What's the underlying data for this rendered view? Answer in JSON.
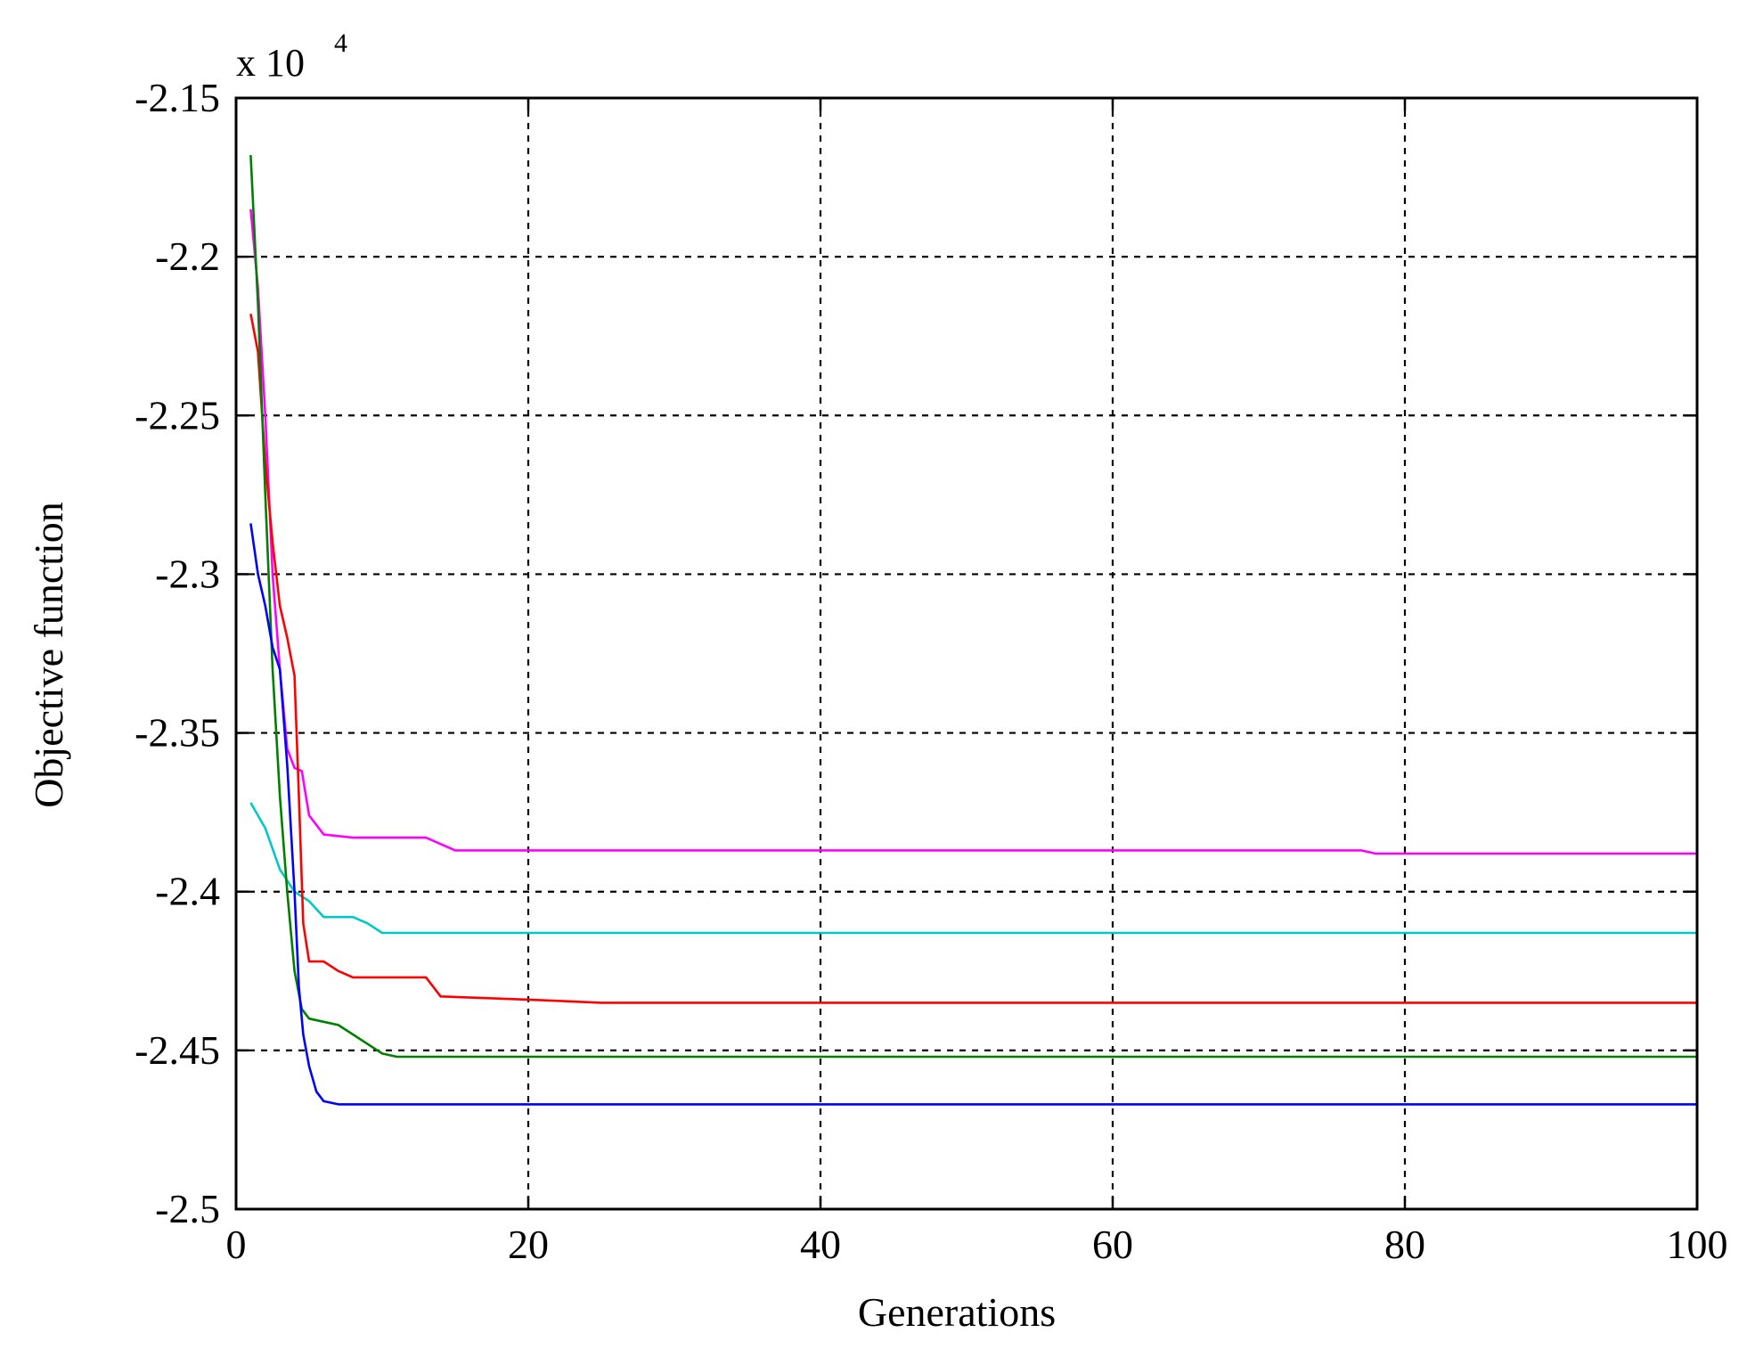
{
  "chart_data": {
    "type": "line",
    "xlabel": "Generations",
    "ylabel": "Objective function",
    "multiplier_base": "x 10",
    "multiplier_exp": "4",
    "xlim": [
      0,
      100
    ],
    "ylim": [
      -2.5,
      -2.15
    ],
    "xticks": [
      0,
      20,
      40,
      60,
      80,
      100
    ],
    "yticks": [
      -2.15,
      -2.2,
      -2.25,
      -2.3,
      -2.35,
      -2.4,
      -2.45,
      -2.5
    ],
    "xtick_labels": [
      "0",
      "20",
      "40",
      "60",
      "80",
      "100"
    ],
    "ytick_labels": [
      "-2.15",
      "-2.2",
      "-2.25",
      "-2.3",
      "-2.35",
      "-2.4",
      "-2.45",
      "-2.5"
    ],
    "grid": true,
    "series": [
      {
        "color": "#ff00ff",
        "x": [
          1,
          1.5,
          2,
          2.5,
          3,
          3.5,
          4,
          4.5,
          5,
          6,
          8,
          10,
          13,
          15,
          20,
          40,
          60,
          77,
          78,
          100
        ],
        "y": [
          -2.185,
          -2.21,
          -2.25,
          -2.3,
          -2.33,
          -2.355,
          -2.361,
          -2.362,
          -2.376,
          -2.382,
          -2.383,
          -2.383,
          -2.383,
          -2.387,
          -2.387,
          -2.387,
          -2.387,
          -2.387,
          -2.388,
          -2.388
        ]
      },
      {
        "color": "#00c8c8",
        "x": [
          1,
          2,
          3,
          4,
          5,
          6,
          7,
          8,
          9,
          10,
          20,
          40,
          60,
          80,
          100
        ],
        "y": [
          -2.372,
          -2.38,
          -2.393,
          -2.4,
          -2.403,
          -2.408,
          -2.408,
          -2.408,
          -2.41,
          -2.413,
          -2.413,
          -2.413,
          -2.413,
          -2.413,
          -2.413
        ]
      },
      {
        "color": "#ff0000",
        "x": [
          1,
          1.5,
          2,
          2.5,
          3,
          3.5,
          4,
          4.3,
          4.6,
          5,
          6,
          7,
          8,
          10,
          13,
          14,
          20,
          25,
          40,
          60,
          80,
          100
        ],
        "y": [
          -2.218,
          -2.23,
          -2.265,
          -2.29,
          -2.31,
          -2.32,
          -2.332,
          -2.37,
          -2.41,
          -2.422,
          -2.422,
          -2.425,
          -2.427,
          -2.427,
          -2.427,
          -2.433,
          -2.434,
          -2.435,
          -2.435,
          -2.435,
          -2.435,
          -2.435
        ]
      },
      {
        "color": "#008000",
        "x": [
          1,
          1.5,
          2,
          2.5,
          3,
          3.5,
          4,
          4.5,
          5,
          6,
          7,
          8,
          9,
          10,
          11,
          20,
          40,
          60,
          80,
          100
        ],
        "y": [
          -2.168,
          -2.215,
          -2.275,
          -2.33,
          -2.37,
          -2.4,
          -2.425,
          -2.437,
          -2.44,
          -2.441,
          -2.442,
          -2.445,
          -2.448,
          -2.451,
          -2.452,
          -2.452,
          -2.452,
          -2.452,
          -2.452,
          -2.452
        ]
      },
      {
        "color": "#0000ff",
        "x": [
          1,
          1.5,
          2,
          2.5,
          3,
          3.5,
          4,
          4.3,
          4.6,
          5,
          5.5,
          6,
          7,
          8,
          10,
          20,
          40,
          60,
          80,
          100
        ],
        "y": [
          -2.284,
          -2.3,
          -2.31,
          -2.323,
          -2.33,
          -2.36,
          -2.4,
          -2.43,
          -2.445,
          -2.455,
          -2.463,
          -2.466,
          -2.467,
          -2.467,
          -2.467,
          -2.467,
          -2.467,
          -2.467,
          -2.467,
          -2.467
        ]
      }
    ]
  }
}
